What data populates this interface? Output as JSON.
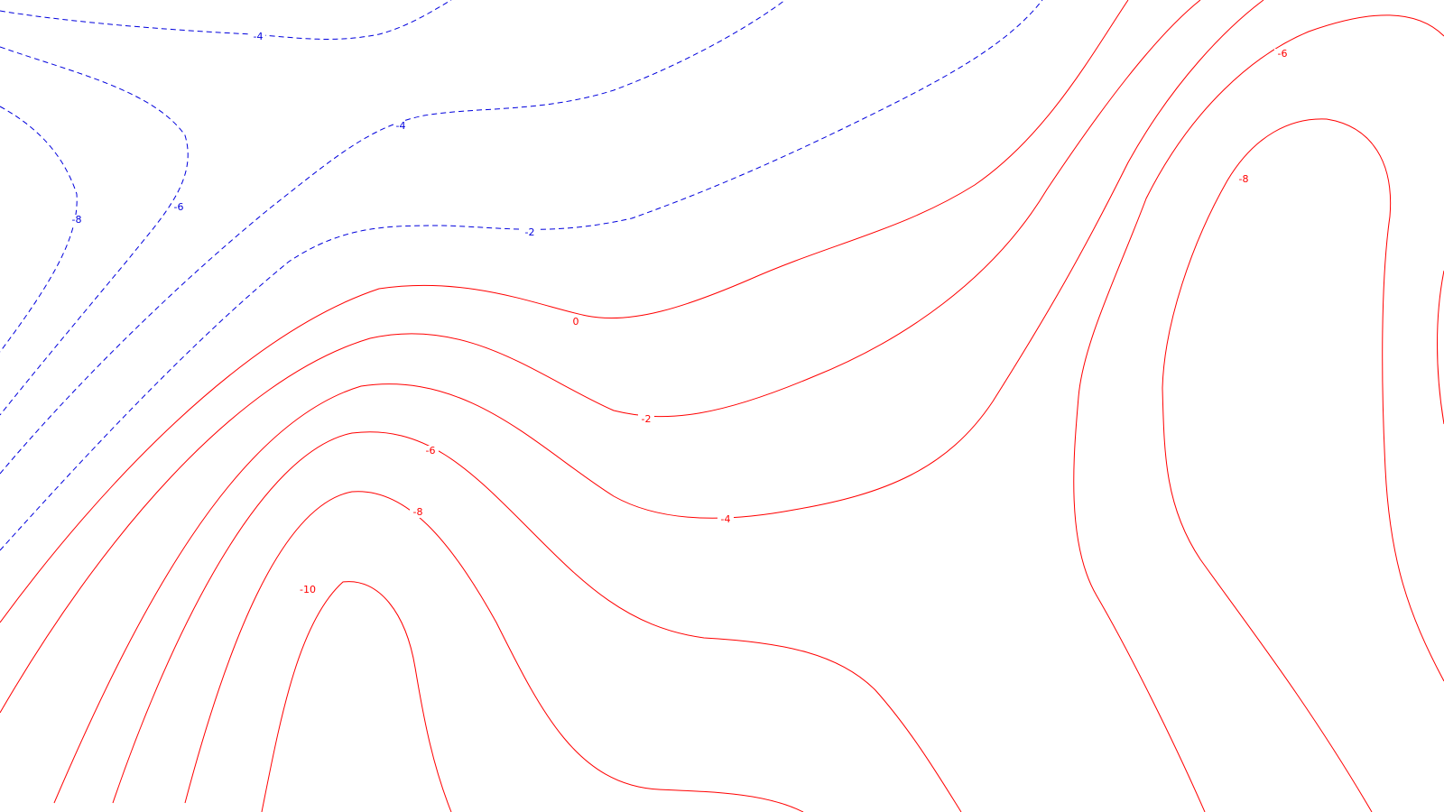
{
  "map": {
    "colors": {
      "positive": "#ff0000",
      "negative": "#0000dd",
      "background": "#ffffff"
    },
    "contours": [
      {
        "id": "neg-4-top",
        "sign": "negative",
        "label": "-4"
      },
      {
        "id": "neg-8-left",
        "sign": "negative",
        "label": "-8"
      },
      {
        "id": "neg-6-left",
        "sign": "negative",
        "label": "-6"
      },
      {
        "id": "neg-4-mid",
        "sign": "negative",
        "label": "-4"
      },
      {
        "id": "neg-2-mid",
        "sign": "negative",
        "label": "-2"
      },
      {
        "id": "pos-0",
        "sign": "positive",
        "label": "0"
      },
      {
        "id": "pos-2",
        "sign": "positive",
        "label": "-2"
      },
      {
        "id": "pos-4",
        "sign": "positive",
        "label": "-4"
      },
      {
        "id": "pos-6",
        "sign": "positive",
        "label": "-6"
      },
      {
        "id": "pos-8",
        "sign": "positive",
        "label": "-8"
      },
      {
        "id": "pos-10",
        "sign": "positive",
        "label": "-10"
      },
      {
        "id": "right-6",
        "sign": "positive",
        "label": "-6"
      },
      {
        "id": "right-8",
        "sign": "positive",
        "label": "-8"
      }
    ]
  }
}
